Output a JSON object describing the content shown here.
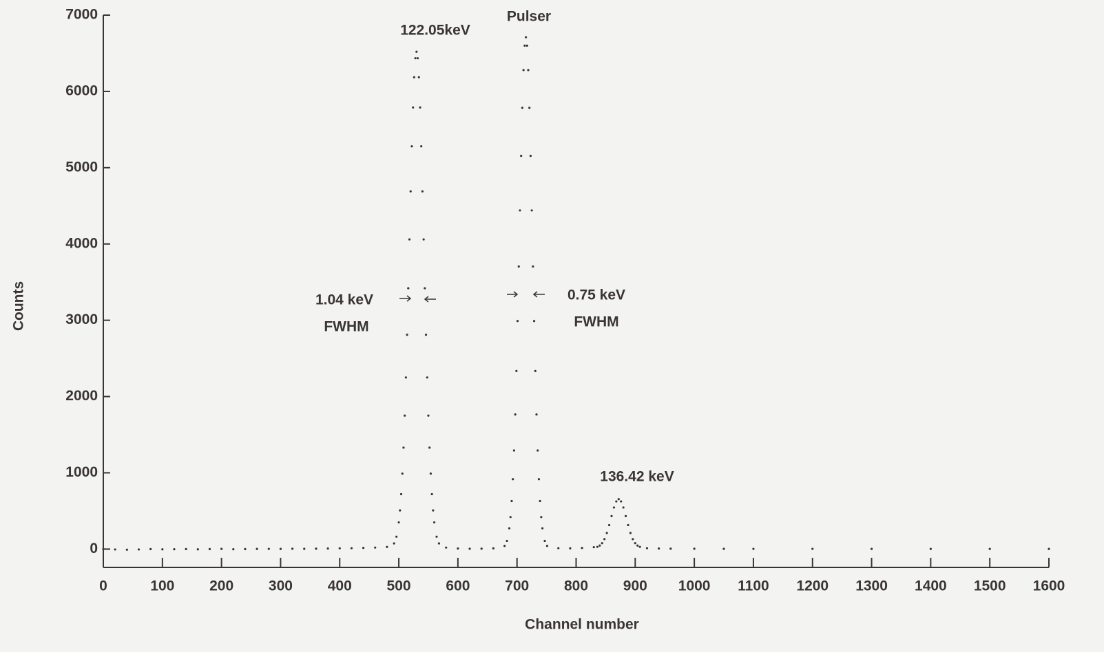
{
  "chart_data": {
    "type": "scatter",
    "xlabel": "Channel number",
    "ylabel": "Counts",
    "annotations": [
      "122.05keV",
      "Pulser",
      "1.04 keV",
      "FWHM",
      "0.75 keV",
      "FWHM",
      "136.42 keV"
    ],
    "xlim": [
      0,
      1600
    ],
    "ylim": [
      -240,
      7000
    ],
    "xticks": [
      0,
      100,
      200,
      300,
      400,
      500,
      600,
      700,
      800,
      900,
      1000,
      1100,
      1200,
      1300,
      1400,
      1500,
      1600
    ],
    "yticks": [
      0,
      1000,
      2000,
      3000,
      4000,
      5000,
      6000,
      7000
    ],
    "color": "#3a3436",
    "x": [
      0,
      20,
      40,
      60,
      80,
      100,
      120,
      140,
      160,
      180,
      200,
      220,
      240,
      260,
      280,
      300,
      320,
      340,
      360,
      380,
      400,
      420,
      440,
      460,
      480,
      492,
      496,
      500,
      502,
      504,
      506,
      508,
      510,
      512,
      514,
      516,
      518,
      520,
      522,
      524,
      526,
      528,
      530,
      532,
      534,
      536,
      538,
      540,
      542,
      544,
      546,
      548,
      550,
      552,
      554,
      556,
      558,
      560,
      564,
      568,
      580,
      600,
      620,
      640,
      660,
      679,
      683,
      687,
      689,
      691,
      693,
      695,
      697,
      699,
      701,
      703,
      705,
      707,
      709,
      711,
      713,
      715,
      717,
      719,
      721,
      723,
      725,
      727,
      729,
      731,
      733,
      735,
      737,
      739,
      741,
      743,
      747,
      751,
      770,
      790,
      810,
      830,
      836,
      840,
      844,
      848,
      852,
      856,
      860,
      864,
      868,
      872,
      876,
      880,
      884,
      888,
      892,
      896,
      900,
      904,
      908,
      920,
      940,
      960,
      1000,
      1050,
      1100,
      1200,
      1300,
      1400,
      1500,
      1600
    ],
    "values": [
      0,
      -5,
      -8,
      -5,
      0,
      -3,
      -2,
      0,
      -3,
      0,
      2,
      -2,
      0,
      2,
      3,
      2,
      5,
      4,
      6,
      8,
      10,
      12,
      16,
      20,
      28,
      75,
      163,
      350,
      507,
      720,
      990,
      1330,
      1750,
      2250,
      2810,
      3420,
      4060,
      4690,
      5280,
      5790,
      6185,
      6435,
      6520,
      6435,
      6185,
      5790,
      5280,
      4690,
      4060,
      3420,
      2810,
      2250,
      1750,
      1330,
      990,
      720,
      507,
      350,
      163,
      75,
      20,
      8,
      5,
      6,
      10,
      42,
      107,
      273,
      420,
      630,
      916,
      1293,
      1765,
      2335,
      2990,
      3705,
      4440,
      5155,
      5785,
      6280,
      6600,
      6710,
      6600,
      6280,
      5785,
      5155,
      4440,
      3705,
      2990,
      2335,
      1765,
      1293,
      916,
      630,
      420,
      273,
      107,
      42,
      12,
      10,
      15,
      25,
      29,
      46,
      78,
      131,
      211,
      315,
      433,
      545,
      625,
      655,
      625,
      545,
      433,
      315,
      211,
      131,
      78,
      46,
      29,
      12,
      8,
      6,
      5,
      4,
      3,
      3,
      2,
      2,
      2,
      2
    ]
  }
}
